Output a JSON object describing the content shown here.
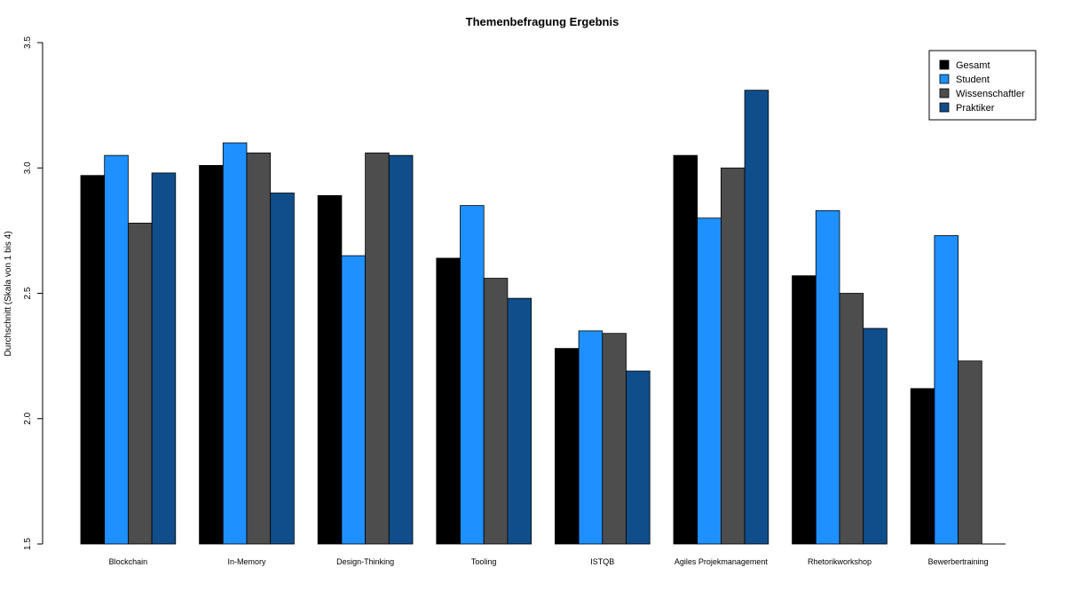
{
  "chart_data": {
    "type": "bar",
    "title": "Themenbefragung Ergebnis",
    "xlabel": "",
    "ylabel": "Durchschnitt (Skala von 1 bis 4)",
    "ylim": [
      1.5,
      3.5
    ],
    "yticks": [
      "1.5",
      "2.0",
      "2.5",
      "3.0",
      "3.5"
    ],
    "categories": [
      "Blockchain",
      "In-Memory",
      "Design-Thinking",
      "Tooling",
      "ISTQB",
      "Agiles Projekmanagement",
      "Rhetorikworkshop",
      "Bewerbertraining"
    ],
    "series": [
      {
        "name": "Gesamt",
        "color": "#000000",
        "values": [
          2.97,
          3.01,
          2.89,
          2.64,
          2.28,
          3.05,
          2.57,
          2.12
        ]
      },
      {
        "name": "Student",
        "color": "#1E90FF",
        "values": [
          3.05,
          3.1,
          2.65,
          2.85,
          2.35,
          2.8,
          2.83,
          2.73
        ]
      },
      {
        "name": "Wissenschaftler",
        "color": "#4D4D4D",
        "values": [
          2.78,
          3.06,
          3.06,
          2.56,
          2.34,
          3.0,
          2.5,
          2.23
        ]
      },
      {
        "name": "Praktiker",
        "color": "#104E8B",
        "values": [
          2.98,
          2.9,
          3.05,
          2.48,
          2.19,
          3.31,
          2.36,
          null
        ]
      }
    ],
    "legend_position": "top-right",
    "grid": false
  }
}
